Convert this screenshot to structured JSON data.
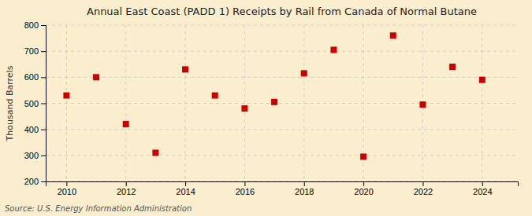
{
  "chart_data": {
    "type": "scatter",
    "title": "Annual East Coast (PADD 1) Receipts by Rail from Canada of Normal Butane",
    "ylabel": "Thousand Barrels",
    "source": "Source: U.S. Energy Information Administration",
    "x": [
      2010,
      2011,
      2012,
      2013,
      2014,
      2015,
      2016,
      2017,
      2018,
      2019,
      2020,
      2021,
      2022,
      2023,
      2024
    ],
    "values": [
      530,
      600,
      420,
      310,
      630,
      530,
      480,
      505,
      615,
      705,
      295,
      760,
      495,
      640,
      590
    ],
    "color": "#cc0000",
    "marker": "square",
    "grid": true,
    "xlim": [
      2009.3,
      2025.2
    ],
    "ylim": [
      200,
      800
    ],
    "xticks": [
      2010,
      2012,
      2014,
      2016,
      2018,
      2020,
      2022,
      2024
    ],
    "yticks": [
      200,
      300,
      400,
      500,
      600,
      700,
      800
    ]
  }
}
